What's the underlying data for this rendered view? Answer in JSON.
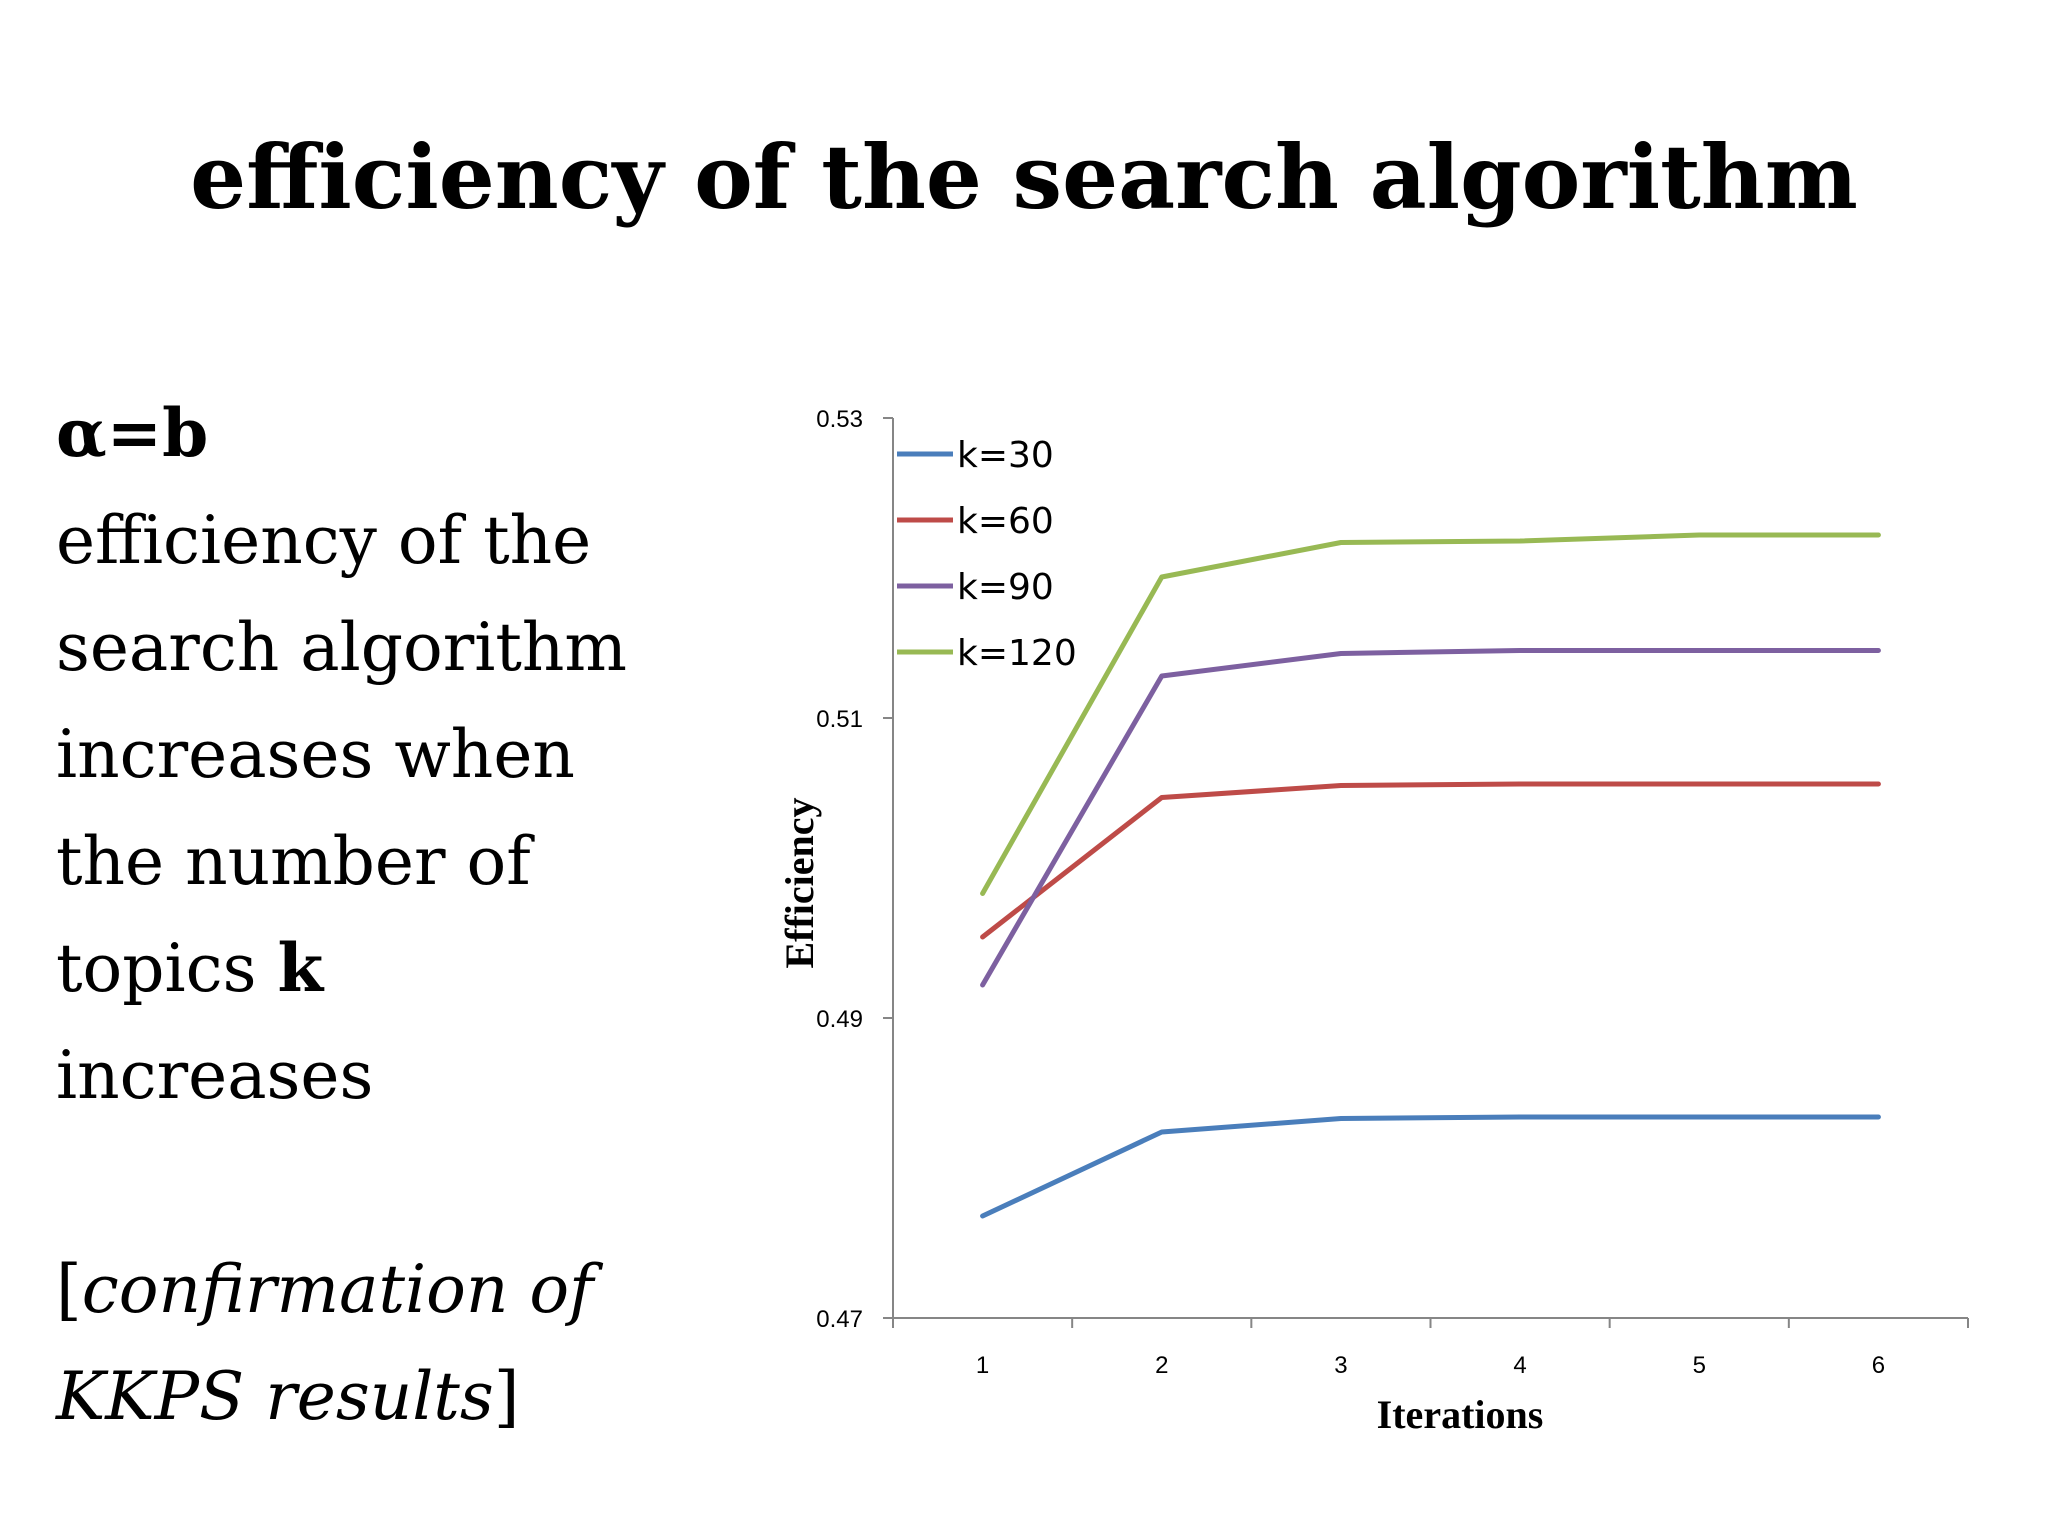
{
  "slide": {
    "title": "efficiency of the search algorithm",
    "condition": "α=b",
    "body_lines": [
      "efficiency of the",
      "search algorithm",
      "increases when",
      "the number of"
    ],
    "topics_prefix": "topics ",
    "topics_k": "k",
    "last_line": "increases",
    "confirm_open": "[",
    "confirm_line1": "confirmation of",
    "confirm_line2": "KKPS results",
    "confirm_close": "]"
  },
  "chart_data": {
    "type": "line",
    "xlabel": "Iterations",
    "ylabel": "Efficiency",
    "categories": [
      "1",
      "2",
      "3",
      "4",
      "5",
      "6"
    ],
    "ylim": [
      0.47,
      0.53
    ],
    "yticks": [
      "0.53",
      "0.51",
      "0.49",
      "0.47"
    ],
    "grid": false,
    "legend": "top-left",
    "series": [
      {
        "name": "k=30",
        "color": "#4a7ebb",
        "values": [
          0.4768,
          0.4824,
          0.4833,
          0.4834,
          0.4834,
          0.4834
        ]
      },
      {
        "name": "k=60",
        "color": "#be4b48",
        "values": [
          0.4954,
          0.5047,
          0.5055,
          0.5056,
          0.5056,
          0.5056
        ]
      },
      {
        "name": "k=90",
        "color": "#7d60a0",
        "values": [
          0.4922,
          0.5128,
          0.5143,
          0.5145,
          0.5145,
          0.5145
        ]
      },
      {
        "name": "k=120",
        "color": "#98b954",
        "values": [
          0.4983,
          0.5194,
          0.5217,
          0.5218,
          0.5222,
          0.5222
        ]
      }
    ]
  }
}
